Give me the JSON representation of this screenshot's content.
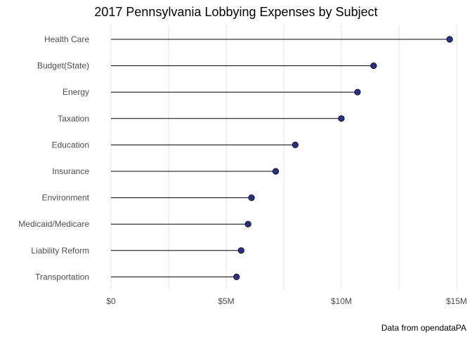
{
  "chart_data": {
    "type": "lollipop",
    "title": "2017 Pennsylvania Lobbying Expenses by Subject",
    "caption": "Data from opendataPA",
    "xlabel": "",
    "ylabel": "",
    "xlim": [
      0,
      15
    ],
    "x_units": "millions USD",
    "x_ticks": [
      0,
      5,
      10,
      15
    ],
    "x_tick_labels": [
      "$0",
      "$5M",
      "$10M",
      "$15M"
    ],
    "grid": true,
    "marker_color": "#2b2f86",
    "categories": [
      "Health Care",
      "Budget(State)",
      "Energy",
      "Taxation",
      "Education",
      "Insurance",
      "Environment",
      "Medicaid/Medicare",
      "Liability Reform",
      "Transportation"
    ],
    "values": [
      14.7,
      11.4,
      10.7,
      10.0,
      8.0,
      7.15,
      6.1,
      5.95,
      5.65,
      5.45
    ]
  }
}
